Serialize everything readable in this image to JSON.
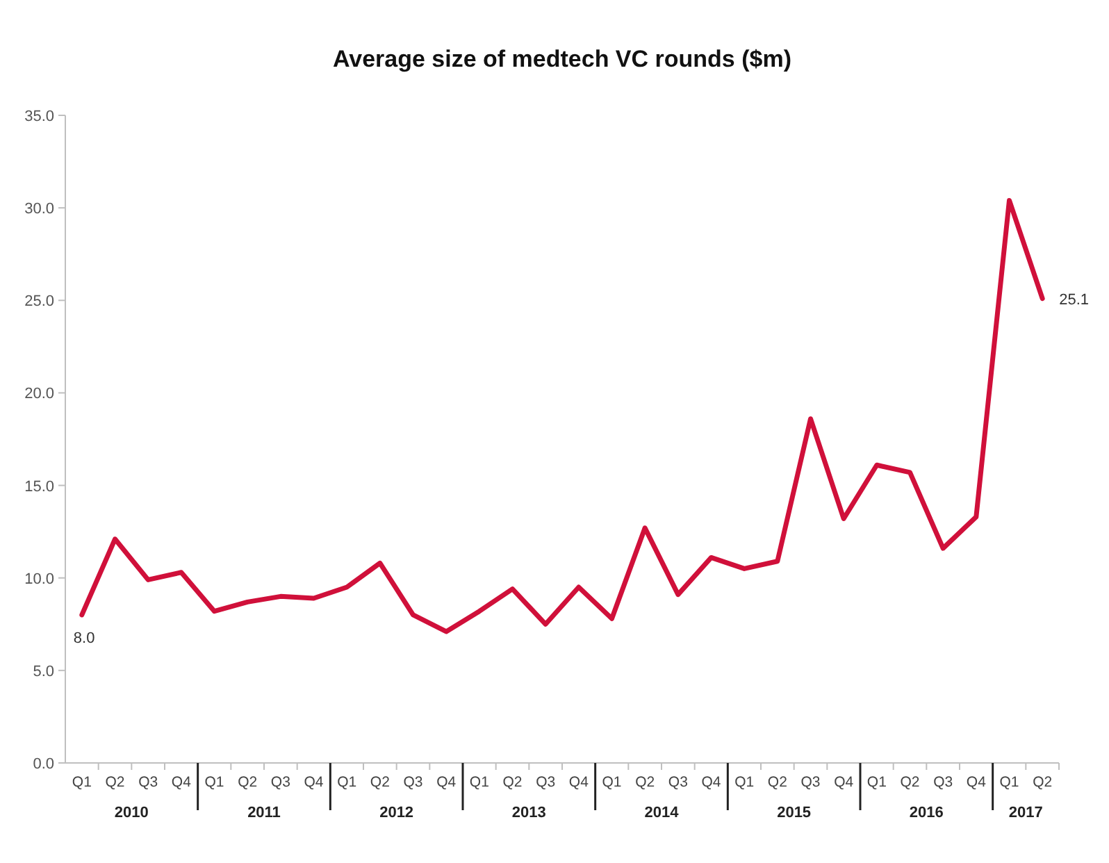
{
  "chart_data": {
    "type": "line",
    "title": "Average size of medtech VC rounds ($m)",
    "categories": [
      "Q1",
      "Q2",
      "Q3",
      "Q4",
      "Q1",
      "Q2",
      "Q3",
      "Q4",
      "Q1",
      "Q2",
      "Q3",
      "Q4",
      "Q1",
      "Q2",
      "Q3",
      "Q4",
      "Q1",
      "Q2",
      "Q3",
      "Q4",
      "Q1",
      "Q2",
      "Q3",
      "Q4",
      "Q1",
      "Q2",
      "Q3",
      "Q4",
      "Q1",
      "Q2"
    ],
    "series": [
      {
        "color": "#d0103a",
        "values": [
          8.0,
          12.1,
          9.9,
          10.3,
          8.2,
          8.7,
          9.0,
          8.9,
          9.5,
          10.8,
          8.0,
          7.1,
          8.2,
          9.4,
          7.5,
          9.5,
          7.8,
          12.7,
          9.1,
          11.1,
          10.5,
          10.9,
          18.6,
          13.2,
          16.1,
          15.7,
          11.6,
          13.3,
          30.4,
          25.1
        ],
        "value_labels": [
          "8.0",
          null,
          null,
          null,
          null,
          null,
          null,
          null,
          null,
          null,
          null,
          null,
          null,
          null,
          null,
          null,
          null,
          null,
          null,
          null,
          null,
          null,
          null,
          null,
          null,
          null,
          null,
          null,
          null,
          "25.1"
        ]
      }
    ],
    "annotations": [
      "2010",
      "2011",
      "2012",
      "2013",
      "2014",
      "2015",
      "2016",
      "2017"
    ],
    "ylim": [
      0,
      35
    ],
    "yticks": [
      {
        "value": 0,
        "label": "0.0"
      },
      {
        "value": 5,
        "label": "5.0"
      },
      {
        "value": 10,
        "label": "10.0"
      },
      {
        "value": 15,
        "label": "15.0"
      },
      {
        "value": 20,
        "label": "20.0"
      },
      {
        "value": 25,
        "label": "25.0"
      },
      {
        "value": 30,
        "label": "30.0"
      },
      {
        "value": 35,
        "label": "35.0"
      }
    ],
    "grid": false,
    "marker": "none",
    "line_style": "solid"
  }
}
